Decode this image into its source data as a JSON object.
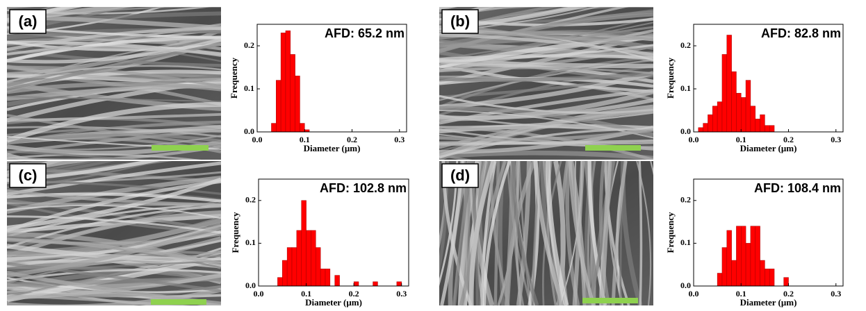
{
  "chart_data": [
    {
      "type": "histogram",
      "label": "(a)",
      "annotation": "AFD: 65.2 nm",
      "x_label": "Diameter (μm)",
      "y_label": "Frequency",
      "color": "#ff0000",
      "bins": [
        0.03,
        0.04,
        0.05,
        0.06,
        0.07,
        0.08,
        0.09,
        0.1,
        0.11
      ],
      "values": [
        0.02,
        0.12,
        0.23,
        0.235,
        0.18,
        0.13,
        0.02,
        0.005
      ],
      "xlim": [
        0,
        0.315
      ],
      "ylim": [
        0,
        0.25
      ],
      "xticks": [
        {
          "value": 0,
          "label": "0.0"
        },
        0.1,
        0.2,
        0.3
      ],
      "yticks": [
        {
          "value": 0,
          "label": "0.0"
        },
        0.1,
        0.2
      ]
    },
    {
      "type": "histogram",
      "label": "(b)",
      "annotation": "AFD: 82.8 nm",
      "x_label": "Diameter (μm)",
      "y_label": "Frequency",
      "color": "#ff0000",
      "bins": [
        0.01,
        0.02,
        0.03,
        0.04,
        0.05,
        0.06,
        0.07,
        0.08,
        0.09,
        0.1,
        0.11,
        0.12,
        0.13,
        0.14,
        0.15,
        0.16,
        0.17
      ],
      "values": [
        0.01,
        0.02,
        0.04,
        0.06,
        0.07,
        0.18,
        0.225,
        0.14,
        0.09,
        0.08,
        0.12,
        0.06,
        0.03,
        0.04,
        0.015,
        0.015
      ],
      "xlim": [
        0,
        0.315
      ],
      "ylim": [
        0,
        0.25
      ],
      "xticks": [
        {
          "value": 0,
          "label": "0.0"
        },
        0.1,
        0.2,
        0.3
      ],
      "yticks": [
        {
          "value": 0,
          "label": "0.0"
        },
        0.1,
        0.2
      ]
    },
    {
      "type": "histogram",
      "label": "(c)",
      "annotation": "AFD: 102.8 nm",
      "x_label": "Diameter (μm)",
      "y_label": "Frequency",
      "color": "#ff0000",
      "bins": [
        0.04,
        0.05,
        0.06,
        0.07,
        0.08,
        0.09,
        0.1,
        0.11,
        0.12,
        0.13,
        0.14,
        0.15,
        0.16,
        0.17,
        0.18,
        0.19,
        0.2,
        0.21,
        0.22,
        0.23,
        0.24,
        0.25,
        0.26,
        0.27,
        0.28,
        0.29,
        0.3
      ],
      "values": [
        0.02,
        0.06,
        0.09,
        0.09,
        0.13,
        0.2,
        0.13,
        0.13,
        0.09,
        0.04,
        0.04,
        0,
        0.025,
        0,
        0,
        0,
        0.01,
        0,
        0,
        0,
        0.01,
        0,
        0,
        0,
        0,
        0.01
      ],
      "xlim": [
        0,
        0.315
      ],
      "ylim": [
        0,
        0.25
      ],
      "xticks": [
        {
          "value": 0,
          "label": "0.0"
        },
        0.1,
        0.2,
        0.3
      ],
      "yticks": [
        {
          "value": 0,
          "label": "0.0"
        },
        0.1,
        0.2
      ]
    },
    {
      "type": "histogram",
      "label": "(d)",
      "annotation": "AFD: 108.4 nm",
      "x_label": "Diameter (μm)",
      "y_label": "Frequency",
      "color": "#ff0000",
      "bins": [
        0.05,
        0.06,
        0.07,
        0.08,
        0.09,
        0.1,
        0.11,
        0.12,
        0.13,
        0.14,
        0.15,
        0.16,
        0.17,
        0.18,
        0.19,
        0.2
      ],
      "values": [
        0.03,
        0.09,
        0.13,
        0.06,
        0.14,
        0.14,
        0.1,
        0.14,
        0.14,
        0.06,
        0.04,
        0.04,
        0,
        0,
        0.02
      ],
      "xlim": [
        0,
        0.315
      ],
      "ylim": [
        0,
        0.25
      ],
      "xticks": [
        {
          "value": 0,
          "label": "0.0"
        },
        0.1,
        0.2,
        0.3
      ],
      "yticks": [
        {
          "value": 0,
          "label": "0.0"
        },
        0.1,
        0.2
      ]
    }
  ]
}
